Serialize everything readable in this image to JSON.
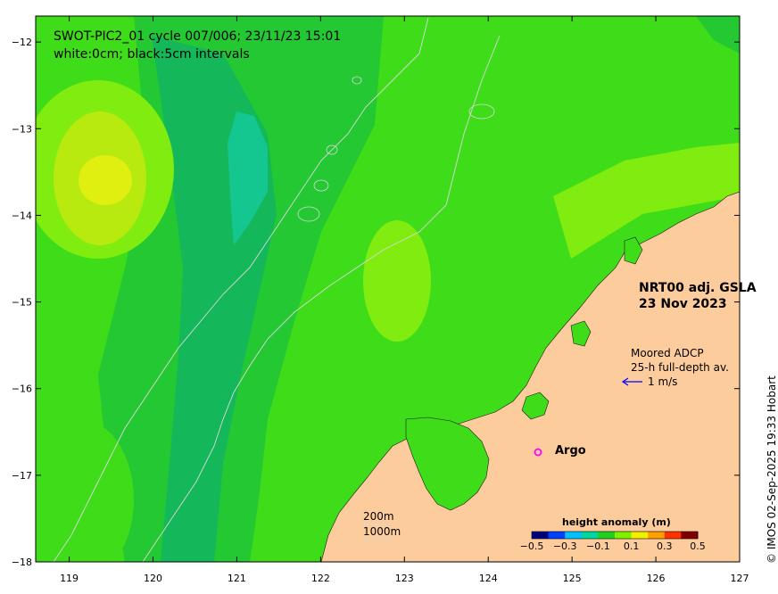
{
  "title": {
    "line1": "SWOT-PIC2_01 cycle 007/006; 23/11/23 15:01",
    "line2": "white:0cm; black:5cm intervals"
  },
  "product": {
    "line1": "NRT00 adj. GSLA",
    "line2": "23 Nov 2023"
  },
  "adcp": {
    "line1": "Moored ADCP",
    "line2": "25-h full-depth av.",
    "scale_label": "1 m/s"
  },
  "argo": {
    "label": "Argo",
    "marker": "o",
    "color": "#ff00ff"
  },
  "depth_legend": {
    "shallow": "200m",
    "deep": "1000m"
  },
  "colorbar": {
    "title": "height anomaly (m)",
    "ticks": [
      "−0.5",
      "−0.3",
      "−0.1",
      "0.1",
      "0.3",
      "0.5"
    ],
    "range": [
      -0.5,
      0.5
    ],
    "colors": [
      "#00007f",
      "#0040ff",
      "#00c0ff",
      "#00d8a0",
      "#20d020",
      "#80f000",
      "#f0f000",
      "#ffa000",
      "#ff3000",
      "#800000"
    ]
  },
  "credit": "© IMOS 02-Sep-2025 19:33 Hobart",
  "axes": {
    "x_ticks": [
      "119",
      "120",
      "121",
      "122",
      "123",
      "124",
      "125",
      "126",
      "127"
    ],
    "y_ticks": [
      "−12",
      "−13",
      "−14",
      "−15",
      "−16",
      "−17",
      "−18"
    ],
    "lon_range": [
      118.6,
      127
    ],
    "lat_range": [
      -18,
      -11.7
    ]
  },
  "colors": {
    "land": "#fdcc9c",
    "sea_base": "#24c832",
    "sea_bright": "#3fdc1a",
    "sea_light": "#80ec10",
    "high_anomaly": "#d8ee10",
    "low_anomaly": "#10b060",
    "lowest_anomaly": "#10c890"
  }
}
